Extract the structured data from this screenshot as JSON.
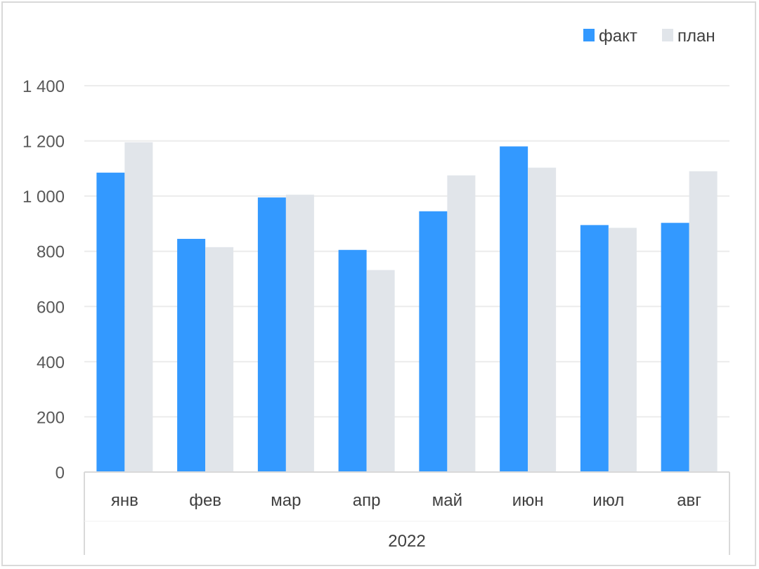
{
  "chart_data": {
    "type": "bar",
    "categories": [
      "янв",
      "фев",
      "мар",
      "апр",
      "май",
      "июн",
      "июл",
      "авг"
    ],
    "group_label": "2022",
    "series": [
      {
        "name": "факт",
        "color": "#3399ff",
        "values": [
          1085,
          845,
          995,
          805,
          945,
          1180,
          895,
          903
        ]
      },
      {
        "name": "план",
        "color": "#e1e5ea",
        "values": [
          1195,
          815,
          1005,
          732,
          1075,
          1103,
          885,
          1090
        ]
      }
    ],
    "y_ticks": [
      0,
      200,
      400,
      600,
      800,
      1000,
      1200,
      1400
    ],
    "y_tick_labels": [
      "0",
      "200",
      "400",
      "600",
      "800",
      "1 000",
      "1 200",
      "1 400"
    ],
    "ylim": [
      0,
      1400
    ],
    "grid": true,
    "legend": "top-right",
    "title": "",
    "xlabel": "",
    "ylabel": ""
  }
}
